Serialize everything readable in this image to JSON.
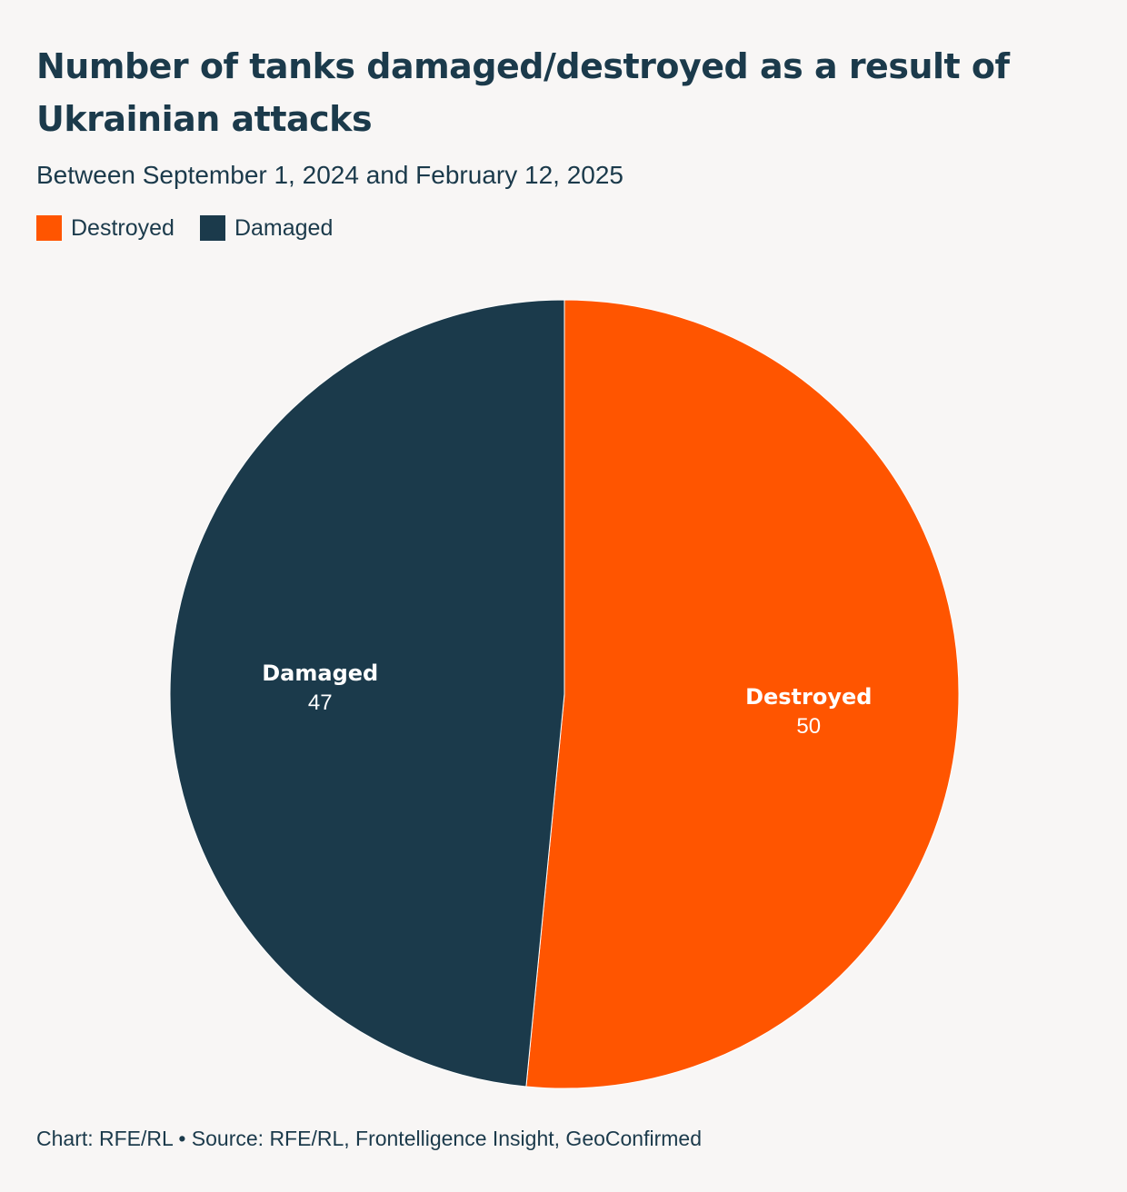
{
  "header": {
    "title": "Number of tanks damaged/destroyed as a result of Ukrainian attacks",
    "subtitle": "Between September 1, 2024 and February 12, 2025"
  },
  "legend": [
    {
      "label": "Destroyed",
      "color": "#ff5500"
    },
    {
      "label": "Damaged",
      "color": "#1b3a4b"
    }
  ],
  "chart_data": {
    "type": "pie",
    "title": "Number of tanks damaged/destroyed as a result of Ukrainian attacks",
    "subtitle": "Between September 1, 2024 and February 12, 2025",
    "legend_position": "top-left",
    "slices": [
      {
        "label": "Destroyed",
        "value": 50,
        "color": "#ff5500"
      },
      {
        "label": "Damaged",
        "value": 47,
        "color": "#1b3a4b"
      }
    ]
  },
  "footer": {
    "credit": "Chart: RFE/RL • Source: RFE/RL, Frontelligence Insight, GeoConfirmed"
  }
}
